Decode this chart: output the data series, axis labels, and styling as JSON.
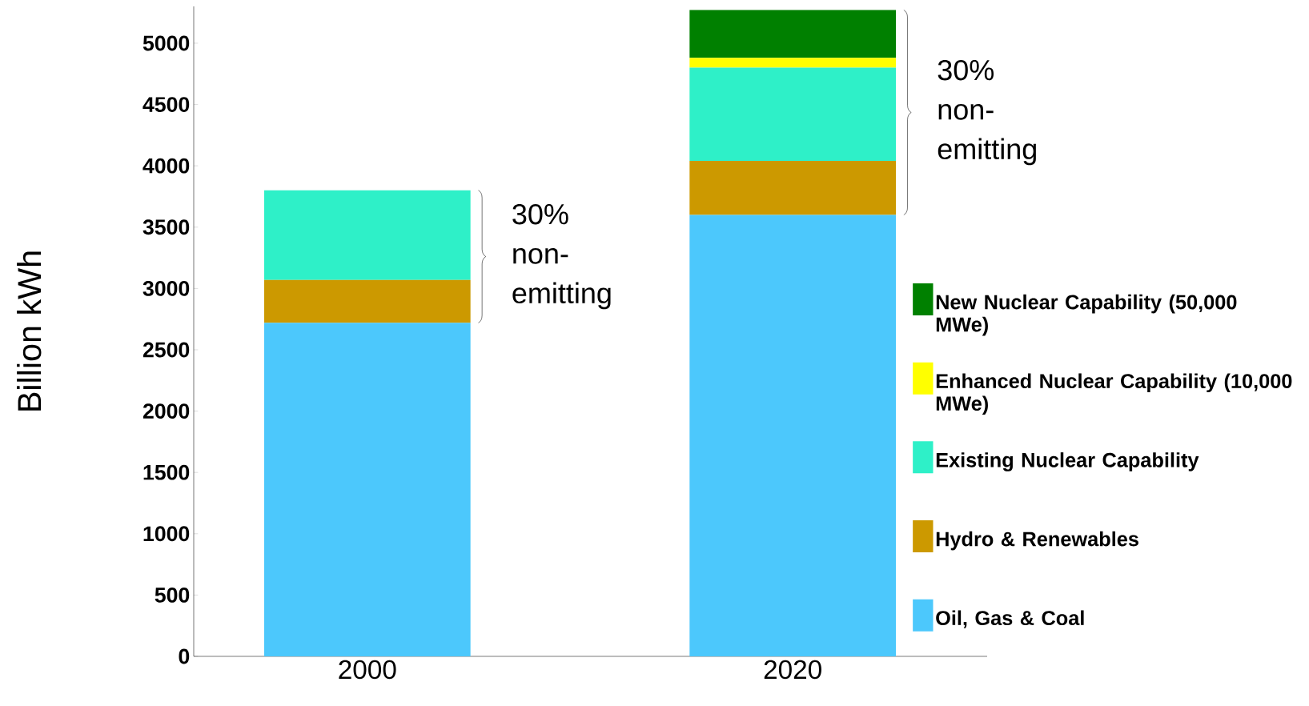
{
  "chart_data": {
    "type": "bar",
    "stacked": true,
    "ylabel": "Billion kWh",
    "categories": [
      "2000",
      "2020"
    ],
    "series": [
      {
        "name": "Oil, Gas & Coal",
        "color": "#4cc8fc",
        "values": [
          2720,
          3600
        ]
      },
      {
        "name": "Hydro & Renewables",
        "color": "#cc9900",
        "values": [
          350,
          440
        ]
      },
      {
        "name": "Existing Nuclear Capability",
        "color": "#2ef0c8",
        "values": [
          730,
          760
        ]
      },
      {
        "name": "Enhanced Nuclear Capability (10,000 MWe)",
        "color": "#ffff00",
        "values": [
          0,
          80
        ]
      },
      {
        "name": "New Nuclear Capability (50,000 MWe)",
        "color": "#008000",
        "values": [
          0,
          390
        ]
      }
    ],
    "ylim": [
      0,
      5300
    ],
    "yticks": [
      0,
      500,
      1000,
      1500,
      2000,
      2500,
      3000,
      3500,
      4000,
      4500,
      5000
    ],
    "grid": false,
    "legend": "right",
    "annotations": [
      "30% non-emitting",
      "30% non-emitting"
    ]
  }
}
